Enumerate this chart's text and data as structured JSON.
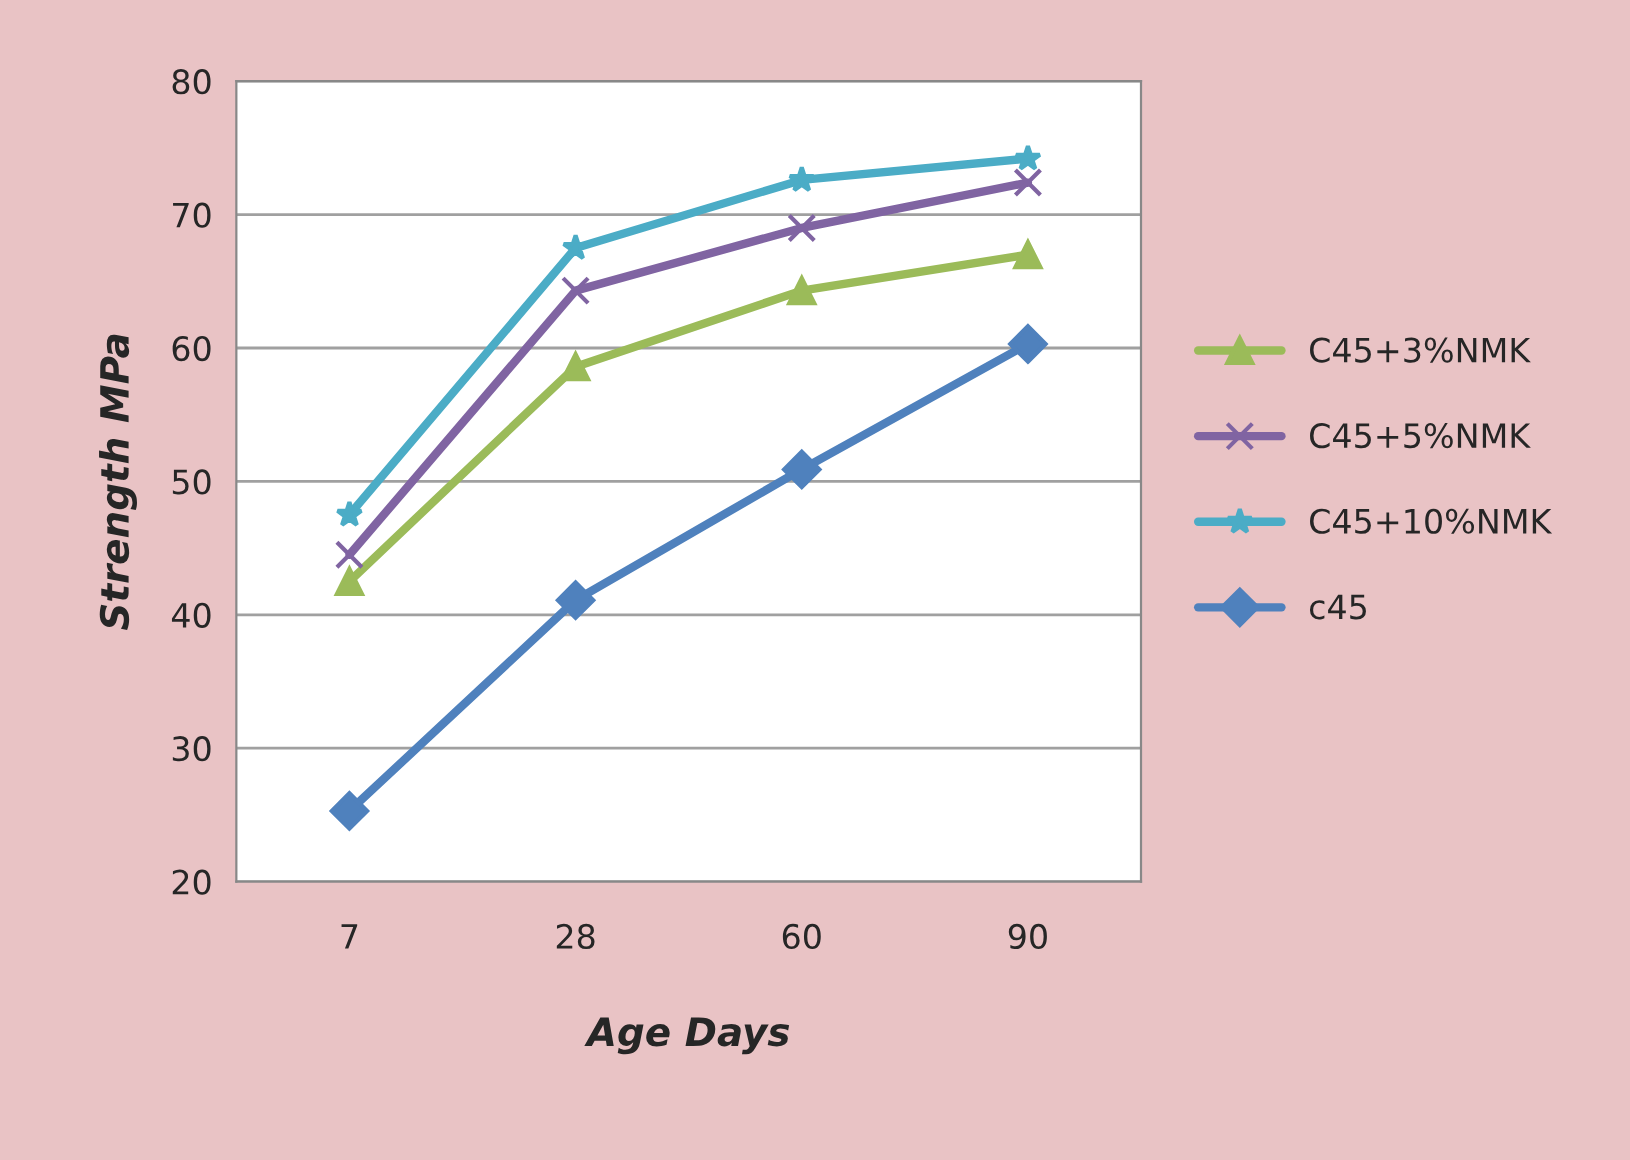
{
  "chart_data": {
    "type": "line",
    "xlabel": "Age Days",
    "ylabel": "Strength MPa",
    "categories": [
      "7",
      "28",
      "60",
      "90"
    ],
    "ylim": [
      20,
      80
    ],
    "yticks": [
      20,
      30,
      40,
      50,
      60,
      70,
      80
    ],
    "grid": "y",
    "legend": "right",
    "line_style": "solid",
    "series": [
      {
        "name": "C45+3%NMK",
        "color": "#9bbb59",
        "marker": "triangle",
        "values": [
          42.5,
          58.6,
          64.3,
          67.0
        ]
      },
      {
        "name": "C45+5%NMK",
        "color": "#8064a2",
        "marker": "cross",
        "values": [
          44.5,
          64.3,
          69.0,
          72.4
        ]
      },
      {
        "name": "C45+10%NMK",
        "color": "#4bacc6",
        "marker": "star",
        "values": [
          47.5,
          67.5,
          72.6,
          74.2
        ]
      },
      {
        "name": "c45",
        "color": "#4f81bd",
        "marker": "diamond",
        "values": [
          25.3,
          41.1,
          50.9,
          60.3
        ]
      }
    ]
  }
}
